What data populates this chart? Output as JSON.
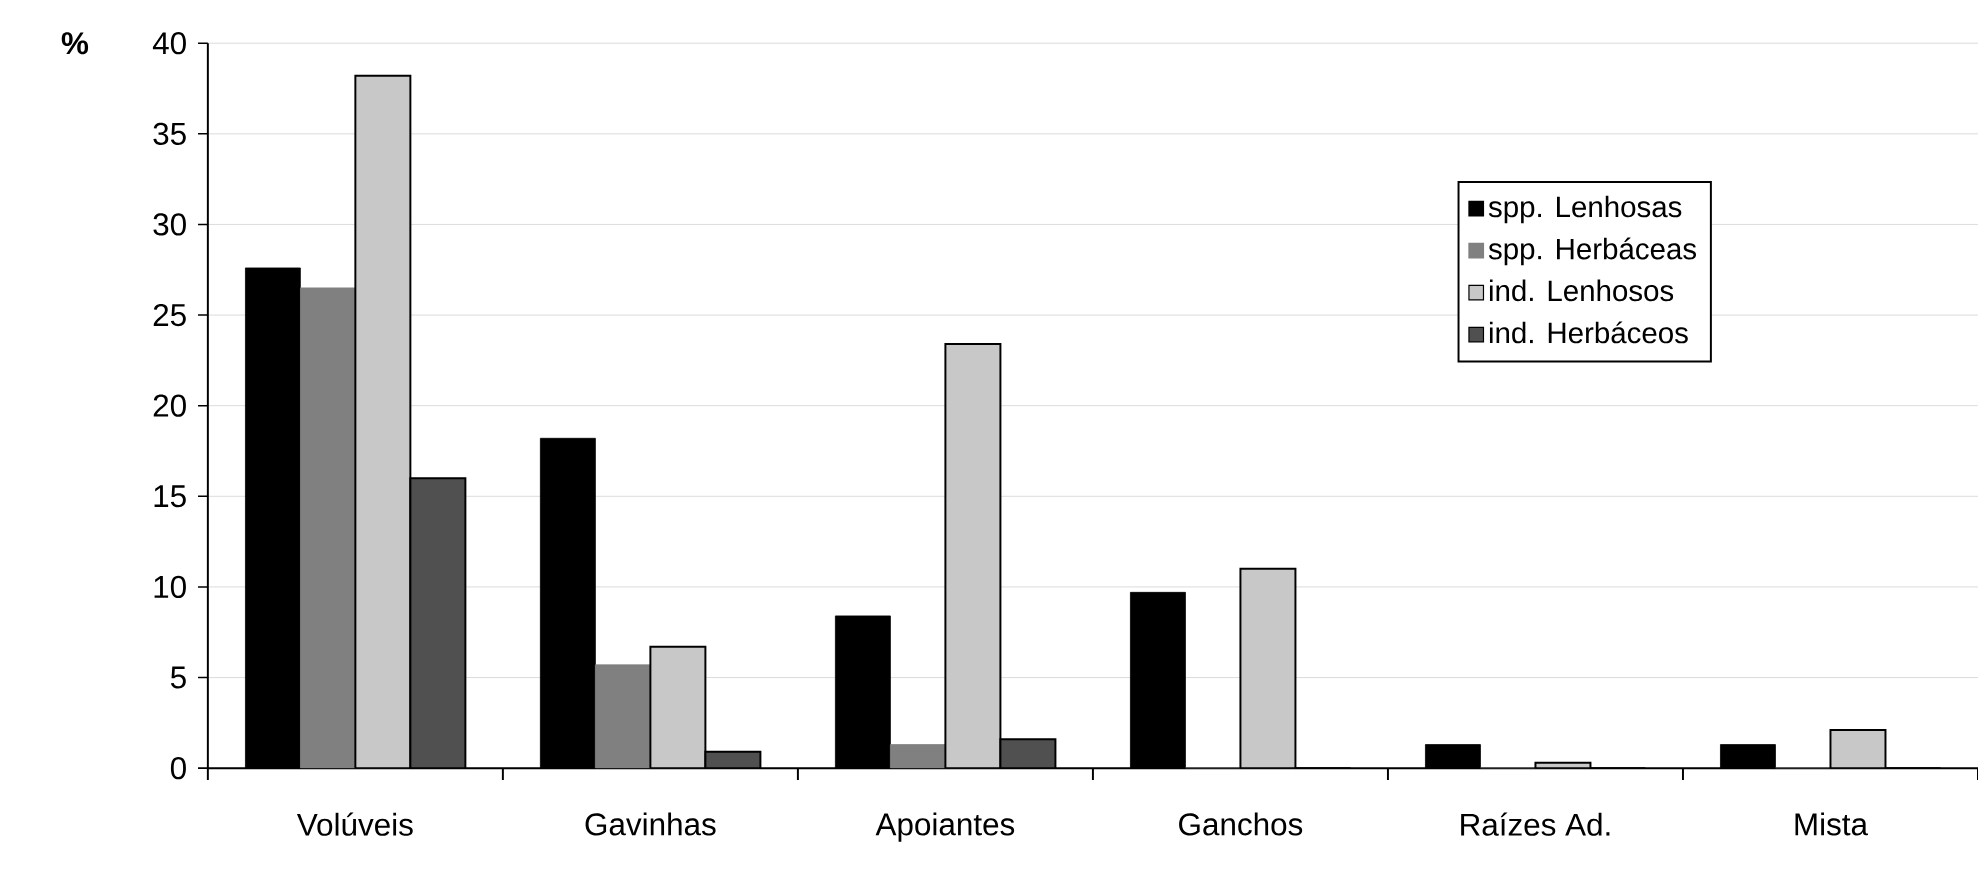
{
  "chart_data": {
    "type": "bar",
    "ylabel": "%",
    "categories": [
      "Volúveis",
      "Gavinhas",
      "Apoiantes",
      "Ganchos",
      "Raízes Ad.",
      "Mista"
    ],
    "series": [
      {
        "name": "spp. Lenhosas",
        "color": "#000000",
        "values": [
          27.6,
          18.2,
          8.4,
          9.7,
          1.3,
          1.3
        ]
      },
      {
        "name": "spp. Herbáceas",
        "color": "#808080",
        "values": [
          26.5,
          5.7,
          1.3,
          0,
          0,
          0
        ]
      },
      {
        "name": "ind. Lenhosos",
        "color": "#c8c8c8",
        "values": [
          38.2,
          6.7,
          23.4,
          11.0,
          0.3,
          2.1
        ]
      },
      {
        "name": "ind. Herbáceos",
        "color": "#505050",
        "values": [
          16.0,
          0.9,
          1.6,
          0,
          0,
          0
        ]
      }
    ],
    "ylim": [
      0,
      40
    ],
    "yticks": [
      0,
      5,
      10,
      15,
      20,
      25,
      30,
      35,
      40
    ],
    "grid": "y",
    "legend": "right"
  }
}
